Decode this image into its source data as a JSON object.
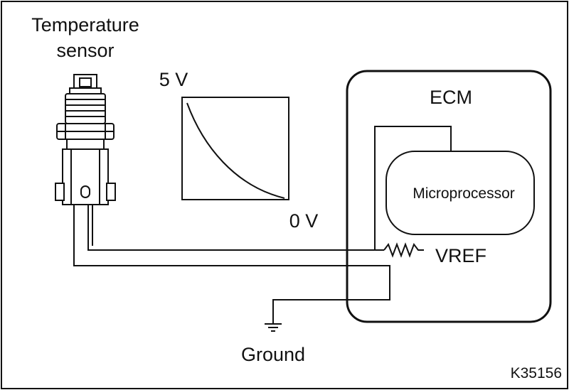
{
  "diagram": {
    "sensor_label_line1": "Temperature",
    "sensor_label_line2": "sensor",
    "graph_top_label": "5 V",
    "graph_bottom_label": "0 V",
    "ecm_label": "ECM",
    "microprocessor_label": "Microprocessor",
    "vref_label": "VREF",
    "ground_label": "Ground",
    "figure_code": "K35156"
  },
  "colors": {
    "line": "#111111",
    "background": "#ffffff"
  }
}
